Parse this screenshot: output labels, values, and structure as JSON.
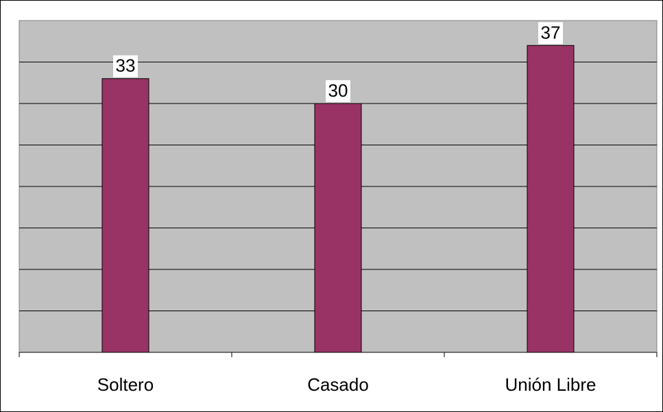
{
  "chart_data": {
    "type": "bar",
    "categories": [
      "Soltero",
      "Casado",
      "Unión Libre"
    ],
    "values": [
      33,
      30,
      37
    ],
    "ylim": [
      0,
      40
    ],
    "grid": true,
    "show_y_ticks": false,
    "data_labels": [
      "33",
      "30",
      "37"
    ],
    "colors": {
      "bar": "#993366",
      "plot_background": "#c0c0c0",
      "gridline": "#000000",
      "data_label_background": "#ffffff"
    }
  }
}
